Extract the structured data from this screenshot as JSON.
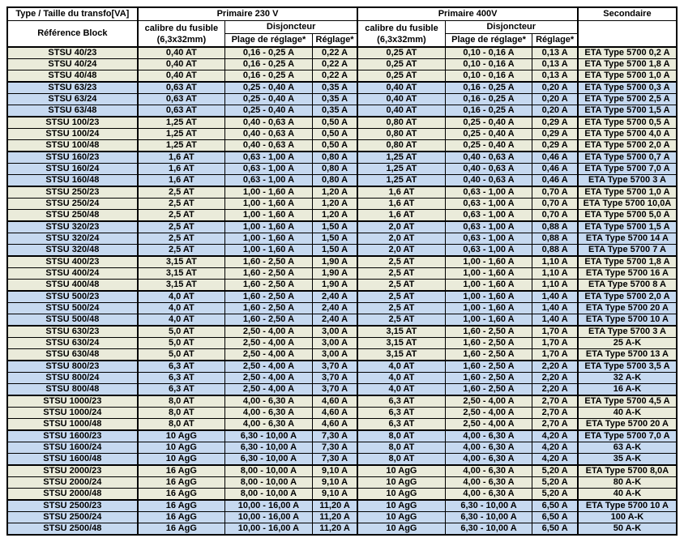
{
  "header": {
    "type_title": "Type / Taille du transfo[VA]",
    "reference": "Référence Block",
    "primaire_230": "Primaire 230 V",
    "primaire_400": "Primaire 400V",
    "secondaire": "Secondaire",
    "fuse_line1": "calibre du fusible",
    "fuse_line2": "(6,3x32mm)",
    "disjoncteur": "Disjoncteur",
    "plage": "Plage de réglage*",
    "reglage": "Réglage*"
  },
  "colors": {
    "cream_row": "#EAEBDA",
    "blue_row": "#C6D9F0",
    "border": "#000000"
  },
  "columns": [
    "Référence Block",
    "calibre du fusible (6,3x32mm) 230V",
    "Plage de réglage* 230V",
    "Réglage* 230V",
    "calibre du fusible (6,3x32mm) 400V",
    "Plage de réglage* 400V",
    "Réglage* 400V",
    "Secondaire"
  ],
  "rows": [
    {
      "ref": "STSU 40/23",
      "fuse230": "0,40 AT",
      "range230": "0,16 - 0,25 A",
      "set230": "0,22 A",
      "fuse400": "0,25 AT",
      "range400": "0,10 - 0,16 A",
      "set400": "0,13 A",
      "sec": "ETA Type 5700 0,2 A"
    },
    {
      "ref": "STSU 40/24",
      "fuse230": "0,40 AT",
      "range230": "0,16 - 0,25 A",
      "set230": "0,22 A",
      "fuse400": "0,25 AT",
      "range400": "0,10 - 0,16 A",
      "set400": "0,13 A",
      "sec": "ETA Type 5700 1,8 A"
    },
    {
      "ref": "STSU 40/48",
      "fuse230": "0,40 AT",
      "range230": "0,16 - 0,25 A",
      "set230": "0,22 A",
      "fuse400": "0,25 AT",
      "range400": "0,10 - 0,16 A",
      "set400": "0,13 A",
      "sec": "ETA Type 5700 1,0 A"
    },
    {
      "ref": "STSU 63/23",
      "fuse230": "0,63 AT",
      "range230": "0,25 - 0,40 A",
      "set230": "0,35 A",
      "fuse400": "0,40 AT",
      "range400": "0,16 - 0,25 A",
      "set400": "0,20 A",
      "sec": "ETA Type 5700 0,3 A"
    },
    {
      "ref": "STSU 63/24",
      "fuse230": "0,63 AT",
      "range230": "0,25 - 0,40 A",
      "set230": "0,35 A",
      "fuse400": "0,40 AT",
      "range400": "0,16 - 0,25 A",
      "set400": "0,20 A",
      "sec": "ETA Type 5700 2,5 A"
    },
    {
      "ref": "STSU 63/48",
      "fuse230": "0,63 AT",
      "range230": "0,25 - 0,40 A",
      "set230": "0,35 A",
      "fuse400": "0,40 AT",
      "range400": "0,16 - 0,25 A",
      "set400": "0,20 A",
      "sec": "ETA Type 5700 1,5 A"
    },
    {
      "ref": "STSU 100/23",
      "fuse230": "1,25 AT",
      "range230": "0,40 - 0,63 A",
      "set230": "0,50 A",
      "fuse400": "0,80 AT",
      "range400": "0,25 - 0,40 A",
      "set400": "0,29 A",
      "sec": "ETA Type 5700 0,5 A"
    },
    {
      "ref": "STSU 100/24",
      "fuse230": "1,25 AT",
      "range230": "0,40 - 0,63 A",
      "set230": "0,50 A",
      "fuse400": "0,80 AT",
      "range400": "0,25 - 0,40 A",
      "set400": "0,29 A",
      "sec": "ETA Type 5700 4,0 A"
    },
    {
      "ref": "STSU 100/48",
      "fuse230": "1,25 AT",
      "range230": "0,40 - 0,63 A",
      "set230": "0,50 A",
      "fuse400": "0,80 AT",
      "range400": "0,25 - 0,40 A",
      "set400": "0,29 A",
      "sec": "ETA Type 5700 2,0 A"
    },
    {
      "ref": "STSU 160/23",
      "fuse230": "1,6 AT",
      "range230": "0,63 - 1,00 A",
      "set230": "0,80 A",
      "fuse400": "1,25 AT",
      "range400": "0,40 - 0,63 A",
      "set400": "0,46 A",
      "sec": "ETA Type 5700 0,7 A"
    },
    {
      "ref": "STSU 160/24",
      "fuse230": "1,6 AT",
      "range230": "0,63 - 1,00 A",
      "set230": "0,80 A",
      "fuse400": "1,25 AT",
      "range400": "0,40 - 0,63 A",
      "set400": "0,46 A",
      "sec": "ETA Type 5700 7,0 A"
    },
    {
      "ref": "STSU 160/48",
      "fuse230": "1,6 AT",
      "range230": "0,63 - 1,00 A",
      "set230": "0,80 A",
      "fuse400": "1,25 AT",
      "range400": "0,40 - 0,63 A",
      "set400": "0,46 A",
      "sec": "ETA Type 5700 3 A"
    },
    {
      "ref": "STSU 250/23",
      "fuse230": "2,5 AT",
      "range230": "1,00 - 1,60 A",
      "set230": "1,20 A",
      "fuse400": "1,6 AT",
      "range400": "0,63 - 1,00 A",
      "set400": "0,70 A",
      "sec": "ETA Type 5700 1,0 A"
    },
    {
      "ref": "STSU 250/24",
      "fuse230": "2,5 AT",
      "range230": "1,00 - 1,60 A",
      "set230": "1,20 A",
      "fuse400": "1,6 AT",
      "range400": "0,63 - 1,00 A",
      "set400": "0,70 A",
      "sec": "ETA Type 5700 10,0A"
    },
    {
      "ref": "STSU 250/48",
      "fuse230": "2,5 AT",
      "range230": "1,00 - 1,60 A",
      "set230": "1,20 A",
      "fuse400": "1,6 AT",
      "range400": "0,63 - 1,00 A",
      "set400": "0,70 A",
      "sec": "ETA Type 5700 5,0 A"
    },
    {
      "ref": "STSU 320/23",
      "fuse230": "2,5 AT",
      "range230": "1,00 - 1,60 A",
      "set230": "1,50 A",
      "fuse400": "2,0 AT",
      "range400": "0,63 - 1,00 A",
      "set400": "0,88 A",
      "sec": "ETA Type 5700 1,5 A"
    },
    {
      "ref": "STSU 320/24",
      "fuse230": "2,5 AT",
      "range230": "1,00 - 1,60 A",
      "set230": "1,50 A",
      "fuse400": "2,0 AT",
      "range400": "0,63 - 1,00 A",
      "set400": "0,88 A",
      "sec": "ETA Type 5700 14 A"
    },
    {
      "ref": "STSU 320/48",
      "fuse230": "2,5 AT",
      "range230": "1,00 - 1,60 A",
      "set230": "1,50 A",
      "fuse400": "2,0 AT",
      "range400": "0,63 - 1,00 A",
      "set400": "0,88 A",
      "sec": "ETA Type 5700 7 A"
    },
    {
      "ref": "STSU 400/23",
      "fuse230": "3,15 AT",
      "range230": "1,60 - 2,50 A",
      "set230": "1,90 A",
      "fuse400": "2,5 AT",
      "range400": "1,00 - 1,60 A",
      "set400": "1,10 A",
      "sec": "ETA Type 5700 1,8 A"
    },
    {
      "ref": "STSU 400/24",
      "fuse230": "3,15 AT",
      "range230": "1,60 - 2,50 A",
      "set230": "1,90 A",
      "fuse400": "2,5 AT",
      "range400": "1,00 - 1,60 A",
      "set400": "1,10 A",
      "sec": "ETA Type 5700 16 A"
    },
    {
      "ref": "STSU 400/48",
      "fuse230": "3,15 AT",
      "range230": "1,60 - 2,50 A",
      "set230": "1,90 A",
      "fuse400": "2,5 AT",
      "range400": "1,00 - 1,60 A",
      "set400": "1,10 A",
      "sec": "ETA Type 5700 8 A"
    },
    {
      "ref": "STSU 500/23",
      "fuse230": "4,0 AT",
      "range230": "1,60 - 2,50 A",
      "set230": "2,40 A",
      "fuse400": "2,5 AT",
      "range400": "1,00 - 1,60 A",
      "set400": "1,40 A",
      "sec": "ETA Type 5700 2,0 A"
    },
    {
      "ref": "STSU 500/24",
      "fuse230": "4,0 AT",
      "range230": "1,60 - 2,50 A",
      "set230": "2,40 A",
      "fuse400": "2,5 AT",
      "range400": "1,00 - 1,60 A",
      "set400": "1,40 A",
      "sec": "ETA Type 5700 20 A"
    },
    {
      "ref": "STSU 500/48",
      "fuse230": "4,0 AT",
      "range230": "1,60 - 2,50 A",
      "set230": "2,40 A",
      "fuse400": "2,5 AT",
      "range400": "1,00 - 1,60 A",
      "set400": "1,40 A",
      "sec": "ETA Type 5700 10 A"
    },
    {
      "ref": "STSU 630/23",
      "fuse230": "5,0 AT",
      "range230": "2,50 - 4,00 A",
      "set230": "3,00 A",
      "fuse400": "3,15 AT",
      "range400": "1,60 - 2,50 A",
      "set400": "1,70 A",
      "sec": "ETA Type 5700 3 A"
    },
    {
      "ref": "STSU 630/24",
      "fuse230": "5,0 AT",
      "range230": "2,50 - 4,00 A",
      "set230": "3,00 A",
      "fuse400": "3,15 AT",
      "range400": "1,60 - 2,50 A",
      "set400": "1,70 A",
      "sec": "25 A-K"
    },
    {
      "ref": "STSU 630/48",
      "fuse230": "5,0 AT",
      "range230": "2,50 - 4,00 A",
      "set230": "3,00 A",
      "fuse400": "3,15 AT",
      "range400": "1,60 - 2,50 A",
      "set400": "1,70 A",
      "sec": "ETA Type 5700 13 A"
    },
    {
      "ref": "STSU 800/23",
      "fuse230": "6,3 AT",
      "range230": "2,50 - 4,00 A",
      "set230": "3,70 A",
      "fuse400": "4,0 AT",
      "range400": "1,60 - 2,50 A",
      "set400": "2,20 A",
      "sec": "ETA Type 5700 3,5 A"
    },
    {
      "ref": "STSU 800/24",
      "fuse230": "6,3 AT",
      "range230": "2,50 - 4,00 A",
      "set230": "3,70 A",
      "fuse400": "4,0 AT",
      "range400": "1,60 - 2,50 A",
      "set400": "2,20 A",
      "sec": "32 A-K"
    },
    {
      "ref": "STSU 800/48",
      "fuse230": "6,3 AT",
      "range230": "2,50 - 4,00 A",
      "set230": "3,70 A",
      "fuse400": "4,0 AT",
      "range400": "1,60 - 2,50 A",
      "set400": "2,20 A",
      "sec": "16 A-K"
    },
    {
      "ref": "STSU 1000/23",
      "fuse230": "8,0 AT",
      "range230": "4,00 - 6,30 A",
      "set230": "4,60 A",
      "fuse400": "6,3 AT",
      "range400": "2,50 - 4,00 A",
      "set400": "2,70 A",
      "sec": "ETA Type 5700 4,5 A"
    },
    {
      "ref": "STSU 1000/24",
      "fuse230": "8,0 AT",
      "range230": "4,00 - 6,30 A",
      "set230": "4,60 A",
      "fuse400": "6,3 AT",
      "range400": "2,50 - 4,00 A",
      "set400": "2,70 A",
      "sec": "40 A-K"
    },
    {
      "ref": "STSU 1000/48",
      "fuse230": "8,0 AT",
      "range230": "4,00 - 6,30 A",
      "set230": "4,60 A",
      "fuse400": "6,3 AT",
      "range400": "2,50 - 4,00 A",
      "set400": "2,70 A",
      "sec": "ETA Type 5700 20 A"
    },
    {
      "ref": "STSU 1600/23",
      "fuse230": "10 AgG",
      "range230": "6,30 - 10,00 A",
      "set230": "7,30 A",
      "fuse400": "8,0 AT",
      "range400": "4,00 - 6,30 A",
      "set400": "4,20 A",
      "sec": "ETA Type 5700 7,0 A"
    },
    {
      "ref": "STSU 1600/24",
      "fuse230": "10 AgG",
      "range230": "6,30 - 10,00 A",
      "set230": "7,30 A",
      "fuse400": "8,0 AT",
      "range400": "4,00 - 6,30 A",
      "set400": "4,20 A",
      "sec": "63 A-K"
    },
    {
      "ref": "STSU 1600/48",
      "fuse230": "10 AgG",
      "range230": "6,30 - 10,00 A",
      "set230": "7,30 A",
      "fuse400": "8,0 AT",
      "range400": "4,00 - 6,30 A",
      "set400": "4,20 A",
      "sec": "35 A-K"
    },
    {
      "ref": "STSU 2000/23",
      "fuse230": "16 AgG",
      "range230": "8,00 - 10,00 A",
      "set230": "9,10 A",
      "fuse400": "10 AgG",
      "range400": "4,00 - 6,30 A",
      "set400": "5,20 A",
      "sec": "ETA Type 5700 8,0A"
    },
    {
      "ref": "STSU 2000/24",
      "fuse230": "16 AgG",
      "range230": "8,00 - 10,00 A",
      "set230": "9,10 A",
      "fuse400": "10 AgG",
      "range400": "4,00 - 6,30 A",
      "set400": "5,20 A",
      "sec": "80 A-K"
    },
    {
      "ref": "STSU 2000/48",
      "fuse230": "16 AgG",
      "range230": "8,00 - 10,00 A",
      "set230": "9,10 A",
      "fuse400": "10 AgG",
      "range400": "4,00 - 6,30 A",
      "set400": "5,20 A",
      "sec": "40 A-K"
    },
    {
      "ref": "STSU 2500/23",
      "fuse230": "16 AgG",
      "range230": "10,00 - 16,00 A",
      "set230": "11,20 A",
      "fuse400": "10 AgG",
      "range400": "6,30 - 10,00 A",
      "set400": "6,50 A",
      "sec": "ETA Type 5700 10 A"
    },
    {
      "ref": "STSU 2500/24",
      "fuse230": "16 AgG",
      "range230": "10,00 - 16,00 A",
      "set230": "11,20 A",
      "fuse400": "10 AgG",
      "range400": "6,30 - 10,00 A",
      "set400": "6,50 A",
      "sec": "100 A-K"
    },
    {
      "ref": "STSU 2500/48",
      "fuse230": "16 AgG",
      "range230": "10,00 - 16,00 A",
      "set230": "11,20 A",
      "fuse400": "10 AgG",
      "range400": "6,30 - 10,00 A",
      "set400": "6,50 A",
      "sec": "50 A-K"
    }
  ]
}
